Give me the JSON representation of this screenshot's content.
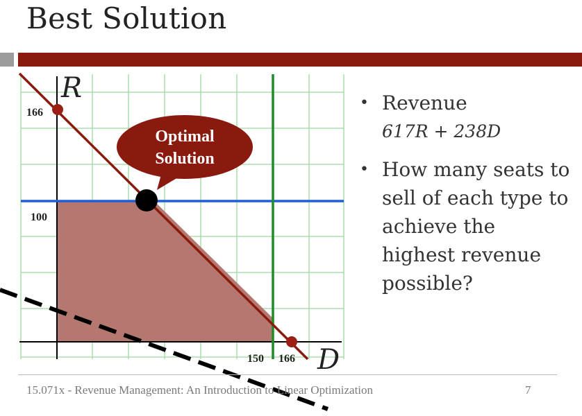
{
  "slide": {
    "title": "Best Solution",
    "page_number": "7",
    "footer": "15.071x - Revenue Management: An Introduction to Linear Optimization"
  },
  "colors": {
    "accent": "#8b1a0e",
    "feasible_region": "#b57870",
    "capacity_line": "#8b1a0e",
    "regular_demand_line": "#1f5fd6",
    "discount_demand_line": "#1e8c2a",
    "grid": "#9ed89e",
    "objective_line": "#000000"
  },
  "graph": {
    "y_axis_name": "R",
    "x_axis_name": "D",
    "tick_labels": {
      "r_166": "166",
      "r_100": "100",
      "d_150": "150",
      "d_166": "166"
    },
    "callout": {
      "line1": "Optimal",
      "line2": "Solution"
    }
  },
  "bullets": {
    "revenue_label": "Revenue",
    "revenue_formula": "617R + 238D",
    "question": "How many seats to sell of each type to achieve the highest revenue possible?"
  }
}
